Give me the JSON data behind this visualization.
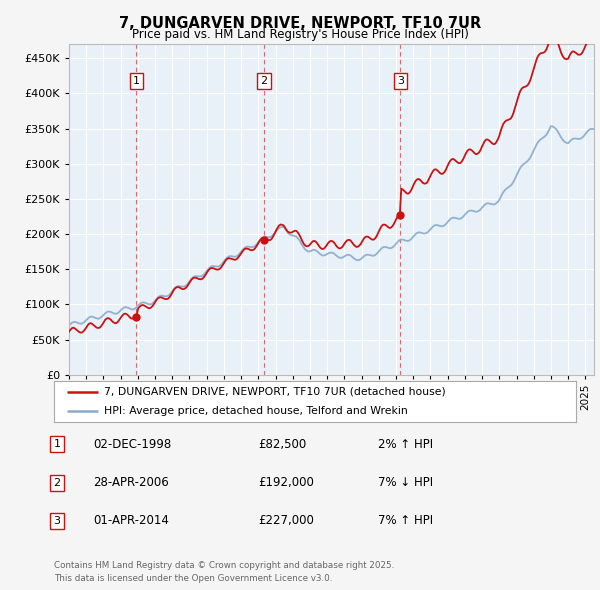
{
  "title": "7, DUNGARVEN DRIVE, NEWPORT, TF10 7UR",
  "subtitle": "Price paid vs. HM Land Registry's House Price Index (HPI)",
  "ytick_values": [
    0,
    50000,
    100000,
    150000,
    200000,
    250000,
    300000,
    350000,
    400000,
    450000
  ],
  "ylim": [
    0,
    470000
  ],
  "xlim_start": 1995.0,
  "xlim_end": 2025.5,
  "red_color": "#cc1111",
  "blue_color": "#88aacc",
  "plot_bg": "#e8f0f8",
  "grid_color": "#ffffff",
  "fig_bg": "#f5f5f5",
  "purchases": [
    {
      "num": 1,
      "date": "02-DEC-1998",
      "price": 82500,
      "pct": "2%",
      "dir": "↑",
      "year": 1998.92
    },
    {
      "num": 2,
      "date": "28-APR-2006",
      "price": 192000,
      "pct": "7%",
      "dir": "↓",
      "year": 2006.33
    },
    {
      "num": 3,
      "date": "01-APR-2014",
      "price": 227000,
      "pct": "7%",
      "dir": "↑",
      "year": 2014.25
    }
  ],
  "legend_label_red": "7, DUNGARVEN DRIVE, NEWPORT, TF10 7UR (detached house)",
  "legend_label_blue": "HPI: Average price, detached house, Telford and Wrekin",
  "footer": "Contains HM Land Registry data © Crown copyright and database right 2025.\nThis data is licensed under the Open Government Licence v3.0.",
  "xtick_years": [
    1995,
    1996,
    1997,
    1998,
    1999,
    2000,
    2001,
    2002,
    2003,
    2004,
    2005,
    2006,
    2007,
    2008,
    2009,
    2010,
    2011,
    2012,
    2013,
    2014,
    2015,
    2016,
    2017,
    2018,
    2019,
    2020,
    2021,
    2022,
    2023,
    2024,
    2025
  ]
}
